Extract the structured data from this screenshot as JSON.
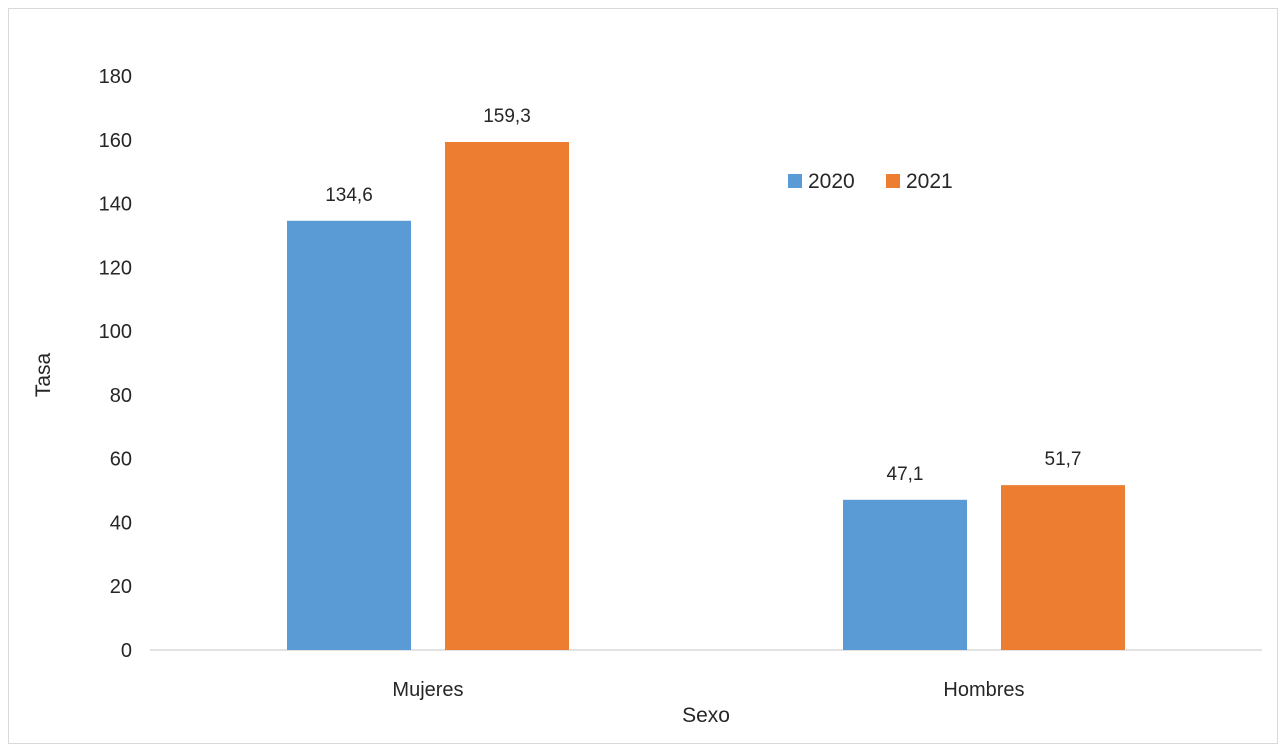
{
  "chart_data": {
    "type": "bar",
    "title": "",
    "xlabel": "Sexo",
    "ylabel": "Tasa",
    "categories": [
      "Mujeres",
      "Hombres"
    ],
    "series": [
      {
        "name": "2020",
        "color": "#5b9bd5",
        "values": [
          134.6,
          47.1
        ],
        "labels": [
          "134,6",
          "47,1"
        ]
      },
      {
        "name": "2021",
        "color": "#ed7d31",
        "values": [
          159.3,
          51.7
        ],
        "labels": [
          "159,3",
          "51,7"
        ]
      }
    ],
    "ylim": [
      0,
      180
    ],
    "yticks": [
      "0",
      "20",
      "40",
      "60",
      "80",
      "100",
      "120",
      "140",
      "160",
      "180"
    ],
    "ytick_values": [
      0,
      20,
      40,
      60,
      80,
      100,
      120,
      140,
      160,
      180
    ],
    "grid": false,
    "legend_position": "upper-right inside plot"
  }
}
